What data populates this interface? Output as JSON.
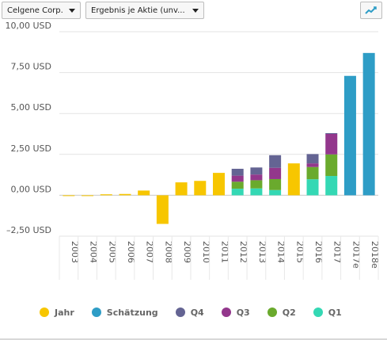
{
  "controls": {
    "company_label": "Celgene Corp.",
    "metric_label": "Ergebnis je Aktie (unv...",
    "chart_type_icon": "line-chart-icon"
  },
  "colors": {
    "jahr": "#f7c600",
    "schaetzung": "#2e9dc6",
    "q4": "#646493",
    "q3": "#93378c",
    "q2": "#6aaa2d",
    "q1": "#34d8b4"
  },
  "legend": [
    "Jahr",
    "Schätzung",
    "Q4",
    "Q3",
    "Q2",
    "Q1"
  ],
  "chart_data": {
    "type": "bar",
    "stacked_quarters": true,
    "categories": [
      "2003",
      "2004",
      "2005",
      "2006",
      "2007",
      "2008",
      "2009",
      "2010",
      "2011",
      "2012",
      "2013",
      "2014",
      "2015",
      "2016",
      "2017",
      "2017e",
      "2018e"
    ],
    "ylim": [
      -2.5,
      10
    ],
    "yticks": [
      -2.5,
      0,
      2.5,
      5,
      7.5,
      10
    ],
    "ytick_labels": [
      "–2,50 USD",
      "0,00 USD",
      "2,50 USD",
      "5,00 USD",
      "7,50 USD",
      "10,00 USD"
    ],
    "grid": true,
    "legend_position": "bottom",
    "series": [
      {
        "name": "Jahr",
        "values": [
          0.0,
          -0.04,
          0.06,
          0.08,
          0.29,
          -1.75,
          0.79,
          0.88,
          1.37,
          null,
          null,
          null,
          1.95,
          null,
          null,
          null,
          null
        ]
      },
      {
        "name": "Schätzung",
        "values": [
          null,
          null,
          null,
          null,
          null,
          null,
          null,
          null,
          null,
          null,
          null,
          null,
          null,
          null,
          null,
          7.3,
          8.7
        ]
      },
      {
        "name": "Q1",
        "values": [
          null,
          null,
          null,
          null,
          null,
          null,
          null,
          null,
          null,
          0.4,
          0.42,
          0.32,
          null,
          0.98,
          1.18,
          null,
          null
        ]
      },
      {
        "name": "Q2",
        "values": [
          null,
          null,
          null,
          null,
          null,
          null,
          null,
          null,
          null,
          0.43,
          0.5,
          0.67,
          null,
          0.75,
          1.32,
          null,
          null
        ]
      },
      {
        "name": "Q3",
        "values": [
          null,
          null,
          null,
          null,
          null,
          null,
          null,
          null,
          null,
          0.37,
          0.35,
          0.69,
          null,
          0.22,
          1.25,
          null,
          null
        ]
      },
      {
        "name": "Q4",
        "values": [
          null,
          null,
          null,
          null,
          null,
          null,
          null,
          null,
          null,
          0.42,
          0.43,
          0.77,
          null,
          0.57,
          0.05,
          null,
          null
        ]
      }
    ]
  }
}
